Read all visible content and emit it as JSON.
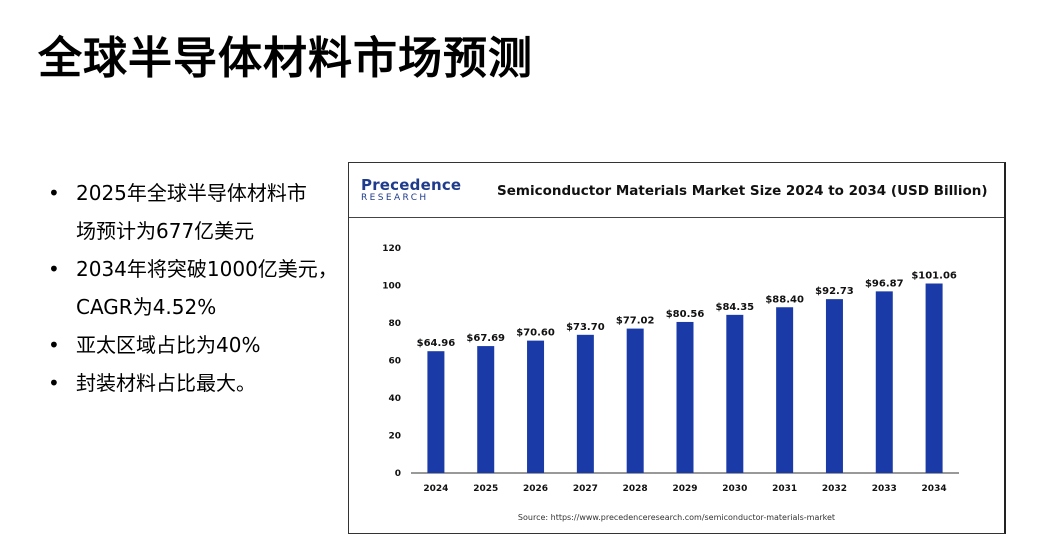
{
  "slide": {
    "title": "全球半导体材料市场预测",
    "bullets": [
      [
        "2025年全球半导体材料市",
        "场预计为677亿美元"
      ],
      [
        "2034年将突破1000亿美元，",
        "CAGR为4.52%"
      ],
      [
        "亚太区域占比为40%"
      ],
      [
        "封装材料占比最大。"
      ]
    ]
  },
  "logo": {
    "main": "Precedence",
    "sub": "RESEARCH",
    "color": "#1f3b8c"
  },
  "colors": {
    "bar": "#1a3aa8",
    "axis": "#333333"
  },
  "chart_data": {
    "type": "bar",
    "title": "Semiconductor Materials Market Size 2024 to 2034 (USD Billion)",
    "categories": [
      "2024",
      "2025",
      "2026",
      "2027",
      "2028",
      "2029",
      "2030",
      "2031",
      "2032",
      "2033",
      "2034"
    ],
    "values": [
      64.96,
      67.69,
      70.6,
      73.7,
      77.02,
      80.56,
      84.35,
      88.4,
      92.73,
      96.87,
      101.06
    ],
    "data_labels": [
      "$64.96",
      "$67.69",
      "$70.60",
      "$73.70",
      "$77.02",
      "$80.56",
      "$84.35",
      "$88.40",
      "$92.73",
      "$96.87",
      "$101.06"
    ],
    "yticks": [
      0,
      20,
      40,
      60,
      80,
      100,
      120
    ],
    "ylim": [
      0,
      120
    ],
    "grid": false,
    "legend": "none",
    "source": "Source: https://www.precedenceresearch.com/semiconductor-materials-market"
  }
}
